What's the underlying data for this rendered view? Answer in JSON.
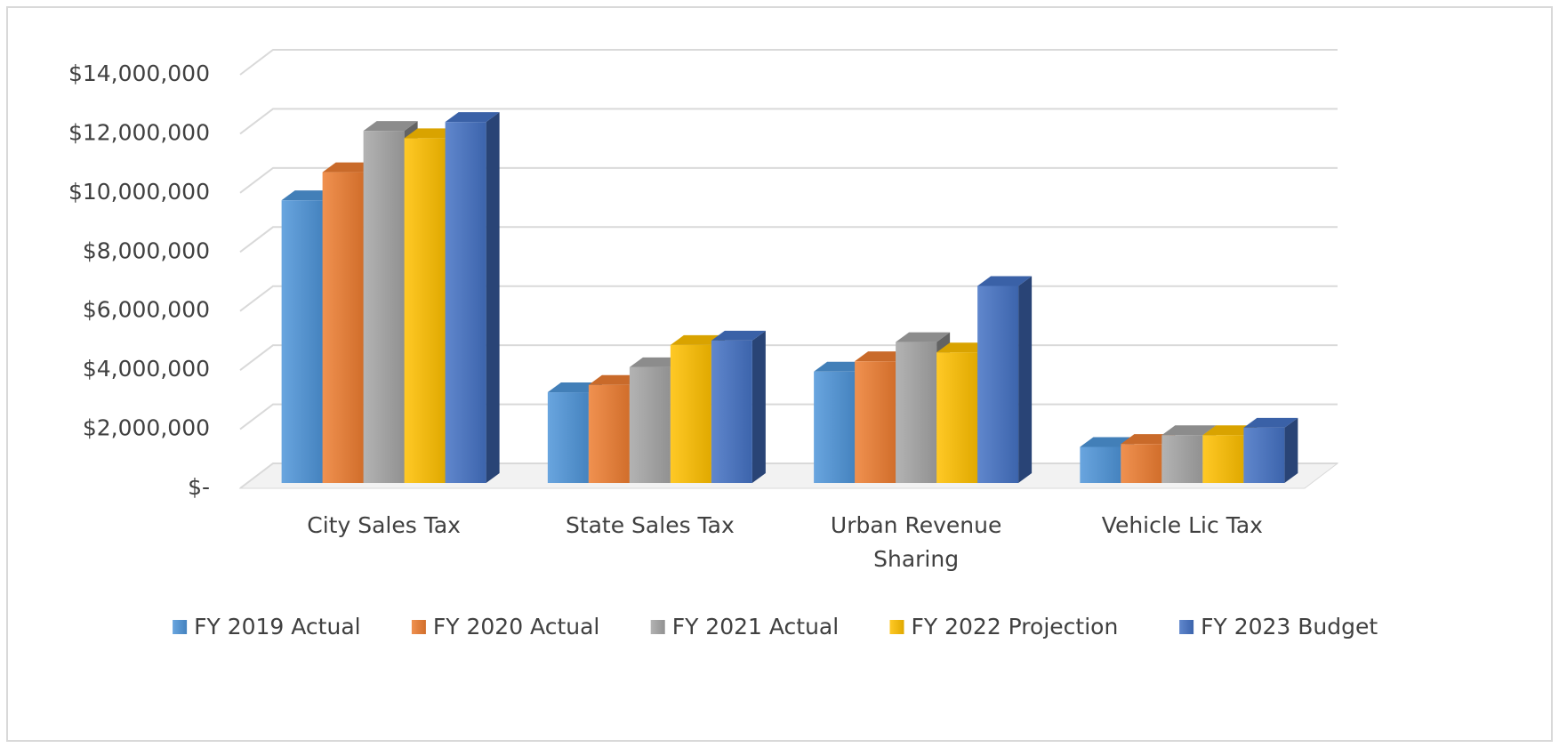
{
  "chart_data": {
    "type": "bar3d",
    "categories": [
      "City Sales Tax",
      "State Sales Tax",
      "Urban Revenue Sharing",
      "Vehicle Lic Tax"
    ],
    "series": [
      {
        "name": "FY 2019 Actual",
        "color": "#4e95d9",
        "values": [
          9750000,
          3250000,
          3950000,
          1400000
        ]
      },
      {
        "name": "FY 2020 Actual",
        "color": "#ed7d31",
        "values": [
          10700000,
          3500000,
          4300000,
          1500000
        ]
      },
      {
        "name": "FY 2021 Actual",
        "color": "#a5a5a5",
        "values": [
          12100000,
          4100000,
          4950000,
          1800000
        ]
      },
      {
        "name": "FY 2022 Projection",
        "color": "#ffc000",
        "values": [
          11850000,
          4850000,
          4600000,
          1800000
        ]
      },
      {
        "name": "FY 2023 Budget",
        "color": "#4472c4",
        "values": [
          12400000,
          5000000,
          6850000,
          2050000
        ]
      }
    ],
    "ylim": [
      0,
      14000000
    ],
    "yticks": [
      {
        "value": 0,
        "label": "$-"
      },
      {
        "value": 2000000,
        "label": "$2,000,000"
      },
      {
        "value": 4000000,
        "label": "$4,000,000"
      },
      {
        "value": 6000000,
        "label": "$6,000,000"
      },
      {
        "value": 8000000,
        "label": "$8,000,000"
      },
      {
        "value": 10000000,
        "label": "$10,000,000"
      },
      {
        "value": 12000000,
        "label": "$12,000,000"
      },
      {
        "value": 14000000,
        "label": "$14,000,000"
      }
    ],
    "grid": true,
    "legend": "bottom"
  }
}
